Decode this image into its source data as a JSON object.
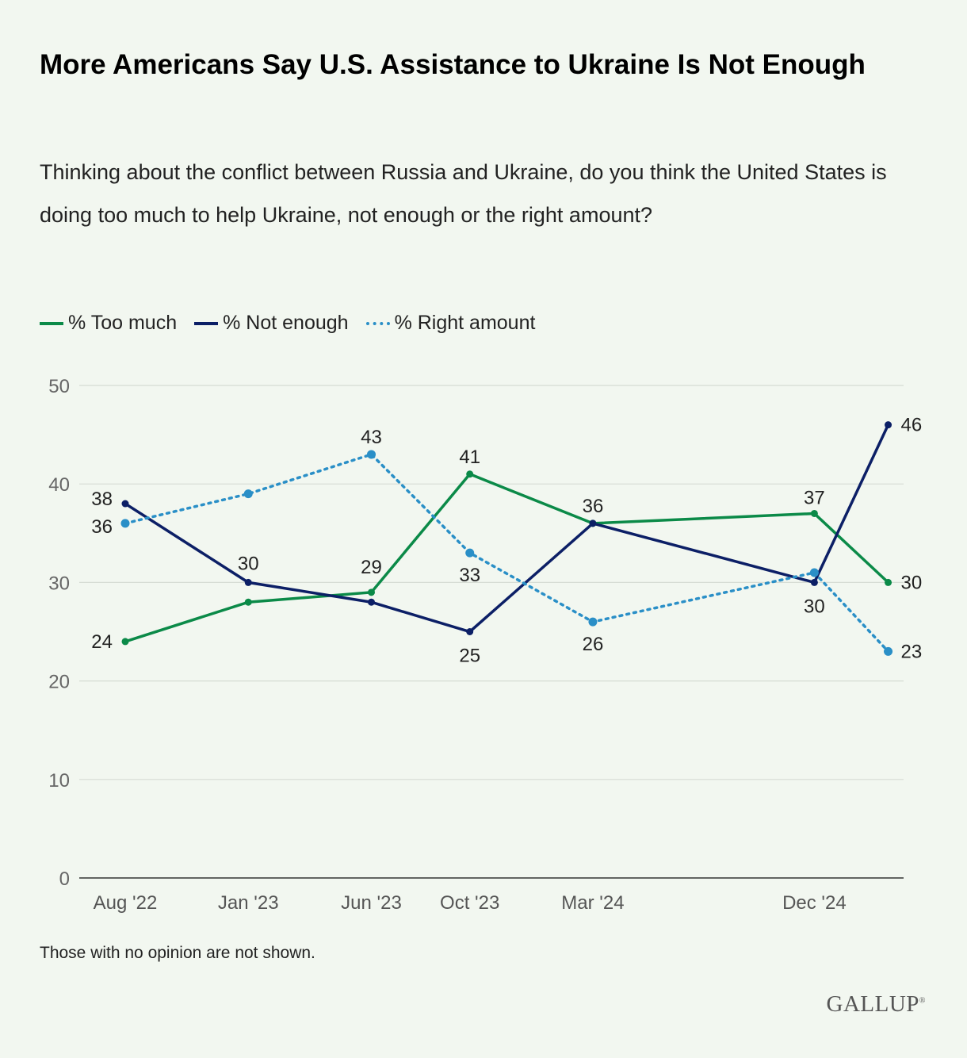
{
  "chart_data": {
    "type": "line",
    "title": "More Americans Say U.S. Assistance to Ukraine Is Not Enough",
    "subtitle": "Thinking about the conflict between Russia and Ukraine, do you think the United States is doing too much to help Ukraine, not enough or the right amount?",
    "x": [
      "2022-08",
      "2023-01",
      "2023-06",
      "2023-10",
      "2024-03",
      "2024-12",
      "2025-03"
    ],
    "xtick_labels": [
      "Aug '22",
      "Jan '23",
      "Jun '23",
      "Oct '23",
      "Mar '24",
      "Dec '24",
      ""
    ],
    "yticks": [
      0,
      10,
      20,
      30,
      40,
      50
    ],
    "ylim": [
      0,
      50
    ],
    "grid": "horizontal",
    "legend_placement": "top-left",
    "series": [
      {
        "name": "% Too much",
        "color": "#0b8a48",
        "style": "solid",
        "values": [
          24,
          28,
          29,
          41,
          36,
          37,
          30
        ],
        "labels": [
          "24",
          null,
          "29",
          "41",
          null,
          "37",
          "30"
        ]
      },
      {
        "name": "% Not enough",
        "color": "#0c1f66",
        "style": "solid",
        "values": [
          38,
          30,
          28,
          25,
          36,
          30,
          46
        ],
        "labels": [
          "38",
          "30",
          null,
          "25",
          "36",
          "30",
          "46"
        ]
      },
      {
        "name": "% Right amount",
        "color": "#2a8fc7",
        "style": "dotted",
        "values": [
          36,
          39,
          43,
          33,
          26,
          31,
          23
        ],
        "labels": [
          "36",
          null,
          "43",
          "33",
          "26",
          null,
          "23"
        ]
      }
    ],
    "note": "Those with no opinion are not shown.",
    "source_logo": "GALLUP"
  }
}
